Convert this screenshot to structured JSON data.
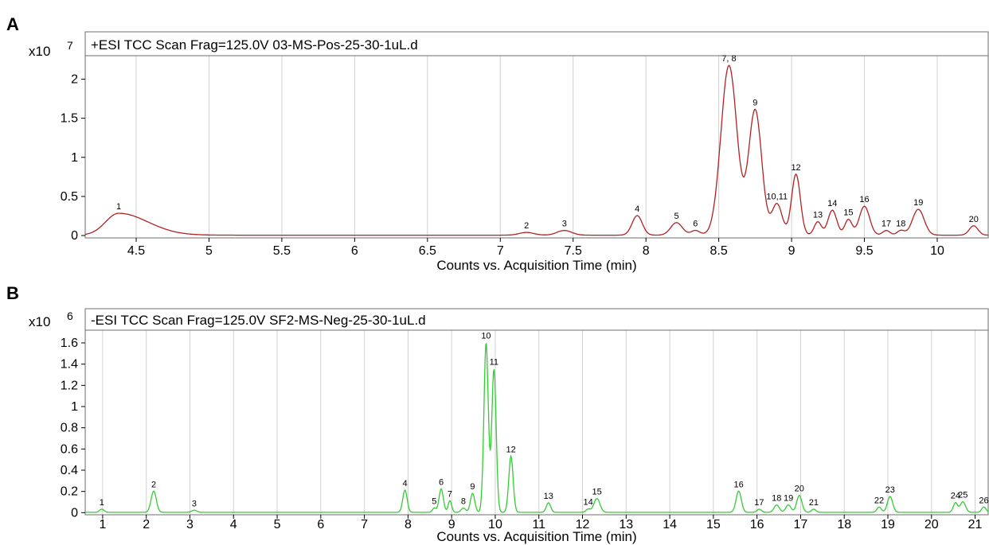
{
  "chart_data": [
    {
      "id": "A",
      "type": "line",
      "panel_label": "A",
      "title": "+ESI TCC Scan Frag=125.0V 03-MS-Pos-25-30-1uL.d",
      "scale": {
        "base": "x10",
        "exponent": "7"
      },
      "xlabel": "Counts vs. Acquisition Time (min)",
      "xlim": [
        4.15,
        10.35
      ],
      "ylim": [
        -0.03,
        2.3
      ],
      "xticks": [
        4.5,
        5,
        5.5,
        6,
        6.5,
        7,
        7.5,
        8,
        8.5,
        9,
        9.5,
        10
      ],
      "xtick_labels": [
        "4.5",
        "5",
        "5.5",
        "6",
        "6.5",
        "7",
        "7.5",
        "8",
        "8.5",
        "9",
        "9.5",
        "10"
      ],
      "yticks": [
        0,
        0.5,
        1,
        1.5,
        2
      ],
      "ytick_labels": [
        "0",
        "0.5",
        "1",
        "1.5",
        "2"
      ],
      "grid": "vertical",
      "color": "#b22222",
      "baseline": 0.005,
      "peaks": [
        {
          "label": "1",
          "x": 4.38,
          "y": 0.28,
          "w": 0.09,
          "w2": 0.2
        },
        {
          "label": "2",
          "x": 7.18,
          "y": 0.035,
          "w": 0.05
        },
        {
          "label": "3",
          "x": 7.44,
          "y": 0.06,
          "w": 0.05
        },
        {
          "label": "4",
          "x": 7.94,
          "y": 0.25,
          "w": 0.035
        },
        {
          "label": "5",
          "x": 8.21,
          "y": 0.16,
          "w": 0.04
        },
        {
          "label": "6",
          "x": 8.34,
          "y": 0.06,
          "w": 0.03
        },
        {
          "label": "7, 8",
          "x": 8.57,
          "y": 2.17,
          "w": 0.055
        },
        {
          "label": "9",
          "x": 8.75,
          "y": 1.6,
          "w": 0.045
        },
        {
          "label": "10,11",
          "x": 8.9,
          "y": 0.4,
          "w": 0.035
        },
        {
          "label": "12",
          "x": 9.03,
          "y": 0.78,
          "w": 0.03
        },
        {
          "label": "13",
          "x": 9.18,
          "y": 0.17,
          "w": 0.025
        },
        {
          "label": "14",
          "x": 9.28,
          "y": 0.32,
          "w": 0.03
        },
        {
          "label": "15",
          "x": 9.39,
          "y": 0.2,
          "w": 0.025
        },
        {
          "label": "16",
          "x": 9.5,
          "y": 0.37,
          "w": 0.035
        },
        {
          "label": "17",
          "x": 9.65,
          "y": 0.06,
          "w": 0.025
        },
        {
          "label": "18",
          "x": 9.75,
          "y": 0.06,
          "w": 0.025
        },
        {
          "label": "19",
          "x": 9.87,
          "y": 0.33,
          "w": 0.04
        },
        {
          "label": "20",
          "x": 10.25,
          "y": 0.12,
          "w": 0.03
        }
      ]
    },
    {
      "id": "B",
      "type": "line",
      "panel_label": "B",
      "title": "-ESI TCC Scan Frag=125.0V SF2-MS-Neg-25-30-1uL.d",
      "scale": {
        "base": "x10",
        "exponent": "6"
      },
      "xlabel": "Counts vs. Acquisition Time (min)",
      "xlim": [
        0.6,
        21.3
      ],
      "ylim": [
        -0.02,
        1.72
      ],
      "xticks": [
        1,
        2,
        3,
        4,
        5,
        6,
        7,
        8,
        9,
        10,
        11,
        12,
        13,
        14,
        15,
        16,
        17,
        18,
        19,
        20,
        21
      ],
      "xtick_labels": [
        "1",
        "2",
        "3",
        "4",
        "5",
        "6",
        "7",
        "8",
        "9",
        "10",
        "11",
        "12",
        "13",
        "14",
        "15",
        "16",
        "17",
        "18",
        "19",
        "20",
        "21"
      ],
      "yticks": [
        0,
        0.2,
        0.4,
        0.6,
        0.8,
        1,
        1.2,
        1.4,
        1.6
      ],
      "ytick_labels": [
        "0",
        "0.2",
        "0.4",
        "0.6",
        "0.8",
        "1",
        "1.2",
        "1.4",
        "1.6"
      ],
      "grid": "vertical",
      "color": "#33cc33",
      "baseline": 0.003,
      "peaks": [
        {
          "label": "1",
          "x": 0.98,
          "y": 0.03,
          "w": 0.05
        },
        {
          "label": "2",
          "x": 2.17,
          "y": 0.2,
          "w": 0.06
        },
        {
          "label": "3",
          "x": 3.1,
          "y": 0.02,
          "w": 0.06
        },
        {
          "label": "4",
          "x": 7.93,
          "y": 0.21,
          "w": 0.05
        },
        {
          "label": "5",
          "x": 8.6,
          "y": 0.04,
          "w": 0.04
        },
        {
          "label": "6",
          "x": 8.76,
          "y": 0.22,
          "w": 0.05
        },
        {
          "label": "7",
          "x": 8.96,
          "y": 0.11,
          "w": 0.04
        },
        {
          "label": "8",
          "x": 9.27,
          "y": 0.04,
          "w": 0.05
        },
        {
          "label": "9",
          "x": 9.48,
          "y": 0.18,
          "w": 0.05
        },
        {
          "label": "10",
          "x": 9.79,
          "y": 1.6,
          "w": 0.05
        },
        {
          "label": "11",
          "x": 9.97,
          "y": 1.35,
          "w": 0.05
        },
        {
          "label": "12",
          "x": 10.36,
          "y": 0.53,
          "w": 0.05
        },
        {
          "label": "13",
          "x": 11.22,
          "y": 0.09,
          "w": 0.05
        },
        {
          "label": "14",
          "x": 12.13,
          "y": 0.03,
          "w": 0.05
        },
        {
          "label": "15",
          "x": 12.33,
          "y": 0.13,
          "w": 0.07
        },
        {
          "label": "16",
          "x": 15.58,
          "y": 0.2,
          "w": 0.06
        },
        {
          "label": "17",
          "x": 16.05,
          "y": 0.03,
          "w": 0.05
        },
        {
          "label": "18",
          "x": 16.45,
          "y": 0.07,
          "w": 0.06
        },
        {
          "label": "19",
          "x": 16.72,
          "y": 0.07,
          "w": 0.06
        },
        {
          "label": "20",
          "x": 16.97,
          "y": 0.16,
          "w": 0.06
        },
        {
          "label": "21",
          "x": 17.3,
          "y": 0.03,
          "w": 0.05
        },
        {
          "label": "22",
          "x": 18.8,
          "y": 0.05,
          "w": 0.05
        },
        {
          "label": "23",
          "x": 19.05,
          "y": 0.15,
          "w": 0.06
        },
        {
          "label": "24",
          "x": 20.55,
          "y": 0.09,
          "w": 0.05
        },
        {
          "label": "25",
          "x": 20.72,
          "y": 0.1,
          "w": 0.06
        },
        {
          "label": "26",
          "x": 21.2,
          "y": 0.05,
          "w": 0.05
        }
      ]
    }
  ]
}
